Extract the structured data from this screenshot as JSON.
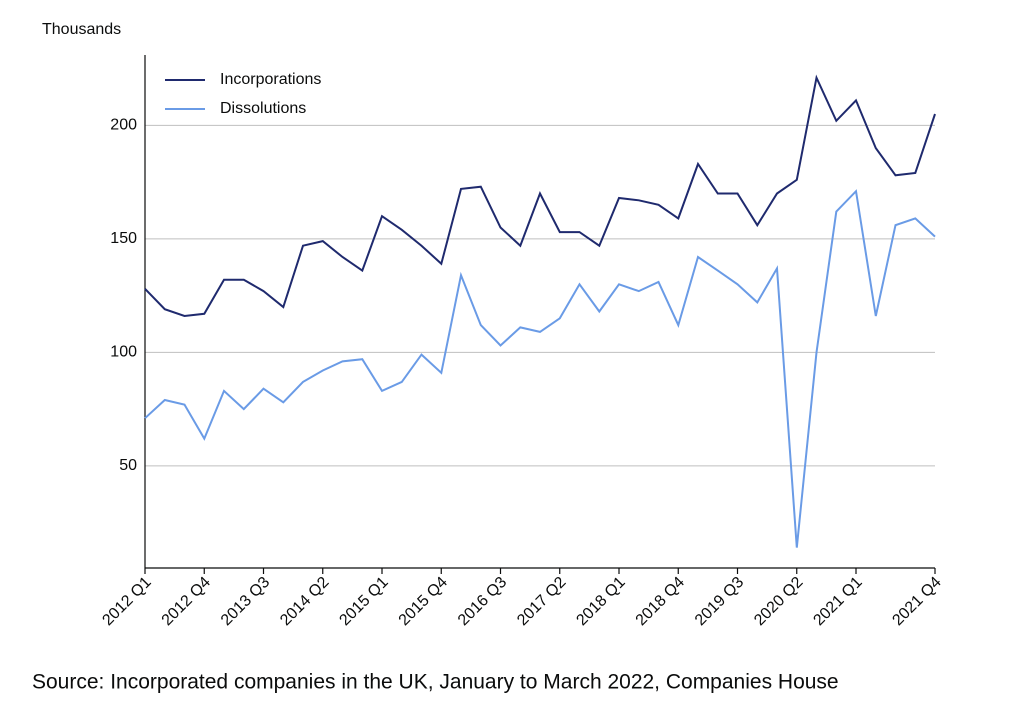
{
  "chart_data": {
    "type": "line",
    "y_axis_label": "Thousands",
    "source": "Source: Incorporated companies in the UK, January to March 2022, Companies House",
    "categories": [
      "2012 Q1",
      null,
      null,
      "2012 Q4",
      null,
      null,
      "2013 Q3",
      null,
      null,
      "2014 Q2",
      null,
      null,
      "2015 Q1",
      null,
      null,
      "2015 Q4",
      null,
      null,
      "2016 Q3",
      null,
      null,
      "2017 Q2",
      null,
      null,
      "2018 Q1",
      null,
      null,
      "2018 Q4",
      null,
      null,
      "2019 Q3",
      null,
      null,
      "2020 Q2",
      null,
      null,
      "2021 Q1",
      null,
      null,
      null,
      "2021 Q4"
    ],
    "series": [
      {
        "name": "Incorporations",
        "color": "#1f2a6e",
        "values": [
          128,
          119,
          116,
          117,
          132,
          132,
          127,
          120,
          147,
          149,
          142,
          136,
          160,
          154,
          147,
          139,
          172,
          173,
          155,
          147,
          170,
          153,
          153,
          147,
          168,
          167,
          165,
          159,
          183,
          170,
          170,
          156,
          170,
          176,
          221,
          202,
          211,
          190,
          178,
          179,
          205
        ]
      },
      {
        "name": "Dissolutions",
        "color": "#6a9be6",
        "values": [
          71,
          79,
          77,
          62,
          83,
          75,
          84,
          78,
          87,
          92,
          96,
          97,
          83,
          87,
          99,
          91,
          134,
          112,
          103,
          111,
          109,
          115,
          130,
          118,
          130,
          127,
          131,
          112,
          142,
          136,
          130,
          122,
          137,
          14,
          100,
          162,
          171,
          116,
          156,
          159,
          151
        ]
      }
    ],
    "ylim": [
      5,
      231
    ],
    "yticks": [
      50,
      100,
      150,
      200
    ],
    "grid": true,
    "legend": "upper left"
  }
}
